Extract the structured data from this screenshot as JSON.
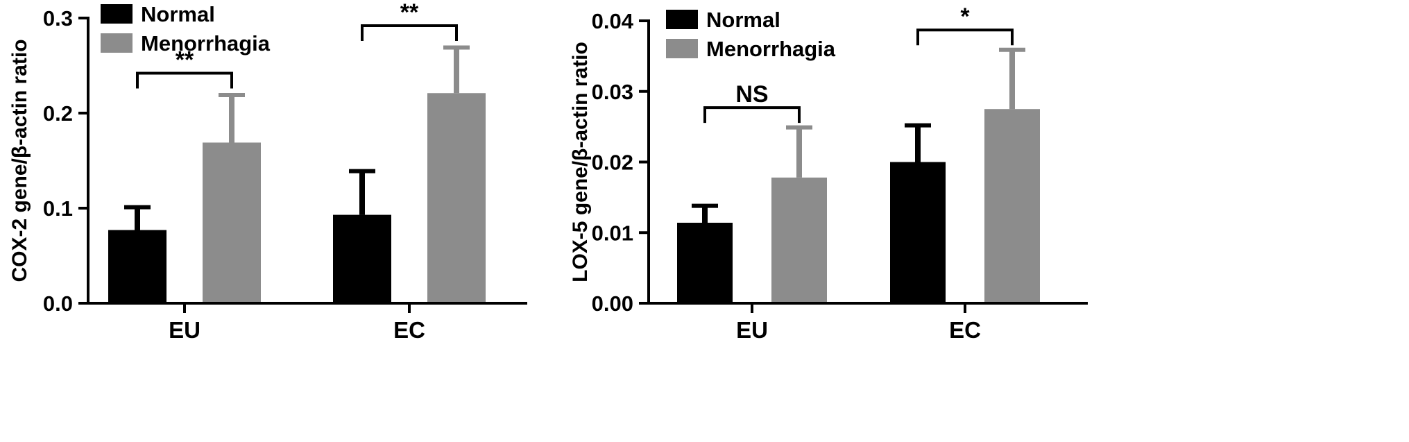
{
  "chart_data": [
    {
      "type": "bar",
      "ylabel": "COX-2 gene/β-actin ratio",
      "xlabel": "",
      "categories": [
        "EU",
        "EC"
      ],
      "ylim": [
        0,
        0.3
      ],
      "yticks": [
        "0.0",
        "0.1",
        "0.2",
        "0.3"
      ],
      "ytick_values": [
        0,
        0.1,
        0.2,
        0.3
      ],
      "legend_position": "top-left",
      "series": [
        {
          "name": "Normal",
          "color": "#000000",
          "values": [
            0.077,
            0.093
          ],
          "errors": [
            0.024,
            0.046
          ]
        },
        {
          "name": "Menorrhagia",
          "color": "#8c8c8c",
          "values": [
            0.169,
            0.221
          ],
          "errors": [
            0.05,
            0.048
          ]
        }
      ],
      "significance": [
        {
          "category": "EU",
          "label": "**",
          "level": 0.242
        },
        {
          "category": "EC",
          "label": "**",
          "level": 0.292
        }
      ]
    },
    {
      "type": "bar",
      "ylabel": "LOX-5 gene/β-actin ratio",
      "xlabel": "",
      "categories": [
        "EU",
        "EC"
      ],
      "ylim": [
        0,
        0.04
      ],
      "yticks": [
        "0.00",
        "0.01",
        "0.02",
        "0.03",
        "0.04"
      ],
      "ytick_values": [
        0,
        0.01,
        0.02,
        0.03,
        0.04
      ],
      "legend_position": "top-left",
      "series": [
        {
          "name": "Normal",
          "color": "#000000",
          "values": [
            0.0114,
            0.02
          ],
          "errors": [
            0.0024,
            0.0052
          ]
        },
        {
          "name": "Menorrhagia",
          "color": "#8c8c8c",
          "values": [
            0.0178,
            0.0275
          ],
          "errors": [
            0.0071,
            0.0084
          ]
        }
      ],
      "significance": [
        {
          "category": "EU",
          "label": "NS",
          "level": 0.0277
        },
        {
          "category": "EC",
          "label": "*",
          "level": 0.0387
        }
      ]
    }
  ]
}
